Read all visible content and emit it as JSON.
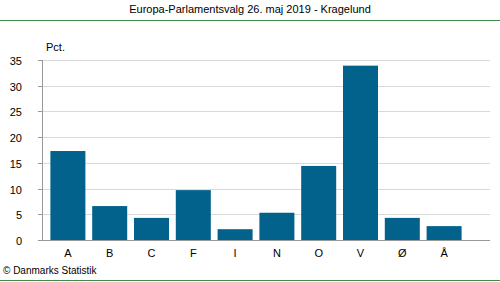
{
  "chart_data": {
    "type": "bar",
    "title": "Europa-Parlamentsvalg 26. maj 2019 - Kragelund",
    "y_label": "Pct.",
    "credit": "© Danmarks Statistik",
    "categories": [
      "A",
      "B",
      "C",
      "F",
      "I",
      "N",
      "O",
      "V",
      "Ø",
      "Å"
    ],
    "values": [
      17.3,
      6.6,
      4.3,
      9.7,
      2.1,
      5.3,
      14.4,
      33.9,
      4.3,
      2.7
    ],
    "color": "#03628c",
    "ylim": [
      0,
      35
    ],
    "yticks": [
      0,
      5,
      10,
      15,
      20,
      25,
      30,
      35
    ],
    "grid": true
  }
}
